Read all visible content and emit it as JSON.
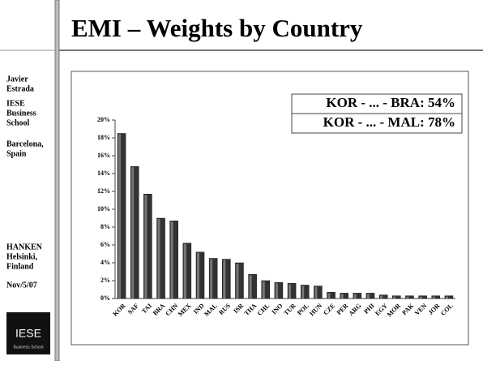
{
  "sidebar": [
    [
      "Javier",
      "Estrada"
    ],
    [
      "IESE",
      "Business",
      "School"
    ],
    [
      "Barcelona,",
      "Spain"
    ],
    [
      "HANKEN",
      "Helsinki,",
      "Finland"
    ],
    [
      "Nov/5/07"
    ]
  ],
  "logo": {
    "name": "IESE",
    "subtitle": "Business School"
  },
  "chart_data": {
    "type": "bar",
    "title": "EMI – Weights by Country",
    "annotations": [
      "KOR - ... - BRA: 54%",
      "KOR - ... - MAL: 78%"
    ],
    "categories": [
      "KOR",
      "SAF",
      "TAI",
      "BRA",
      "CHN",
      "MEX",
      "IND",
      "MAL",
      "RUS",
      "ISR",
      "THA",
      "CHL",
      "INO",
      "TUR",
      "POL",
      "HUN",
      "CZE",
      "PER",
      "ARG",
      "PHI",
      "EGY",
      "MOR",
      "PAK",
      "VEN",
      "JOR",
      "COL"
    ],
    "values": [
      18.5,
      14.8,
      11.7,
      9.0,
      8.7,
      6.2,
      5.2,
      4.5,
      4.4,
      4.0,
      2.7,
      2.0,
      1.8,
      1.7,
      1.5,
      1.4,
      0.7,
      0.6,
      0.6,
      0.6,
      0.4,
      0.3,
      0.3,
      0.3,
      0.3,
      0.3
    ],
    "color": "#333333",
    "ylim": [
      0,
      20
    ],
    "yticks": [
      {
        "value": 0,
        "label": "0%"
      },
      {
        "value": 2,
        "label": "2%"
      },
      {
        "value": 4,
        "label": "4%"
      },
      {
        "value": 6,
        "label": "6%"
      },
      {
        "value": 8,
        "label": "8%"
      },
      {
        "value": 10,
        "label": "10%"
      },
      {
        "value": 12,
        "label": "12%"
      },
      {
        "value": 14,
        "label": "14%"
      },
      {
        "value": 16,
        "label": "16%"
      },
      {
        "value": 18,
        "label": "18%"
      },
      {
        "value": 20,
        "label": "20%"
      }
    ]
  }
}
